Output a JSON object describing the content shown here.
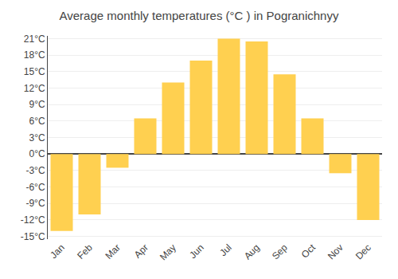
{
  "chart_data": {
    "type": "bar",
    "title": "Average monthly temperatures (°C ) in Pogranichnyy",
    "categories": [
      "Jan",
      "Feb",
      "Mar",
      "Apr",
      "May",
      "Jun",
      "Jul",
      "Aug",
      "Sep",
      "Oct",
      "Nov",
      "Dec"
    ],
    "values": [
      -14,
      -11,
      -2.5,
      6.5,
      13,
      17,
      21,
      20.5,
      14.5,
      6.5,
      -3.5,
      -12
    ],
    "color": "#FFD050",
    "ylim": [
      -15.5,
      21.5
    ],
    "yticks": [
      {
        "value": -15,
        "label": "-15°C"
      },
      {
        "value": -12,
        "label": "-12°C"
      },
      {
        "value": -9,
        "label": "-9°C"
      },
      {
        "value": -6,
        "label": "-6°C"
      },
      {
        "value": -3,
        "label": "-3°C"
      },
      {
        "value": 0,
        "label": "0°C"
      },
      {
        "value": 3,
        "label": "3°C"
      },
      {
        "value": 6,
        "label": "6°C"
      },
      {
        "value": 9,
        "label": "9°C"
      },
      {
        "value": 12,
        "label": "12°C"
      },
      {
        "value": 15,
        "label": "15°C"
      },
      {
        "value": 18,
        "label": "18°C"
      },
      {
        "value": 21,
        "label": "21°C"
      }
    ],
    "grid": true
  }
}
